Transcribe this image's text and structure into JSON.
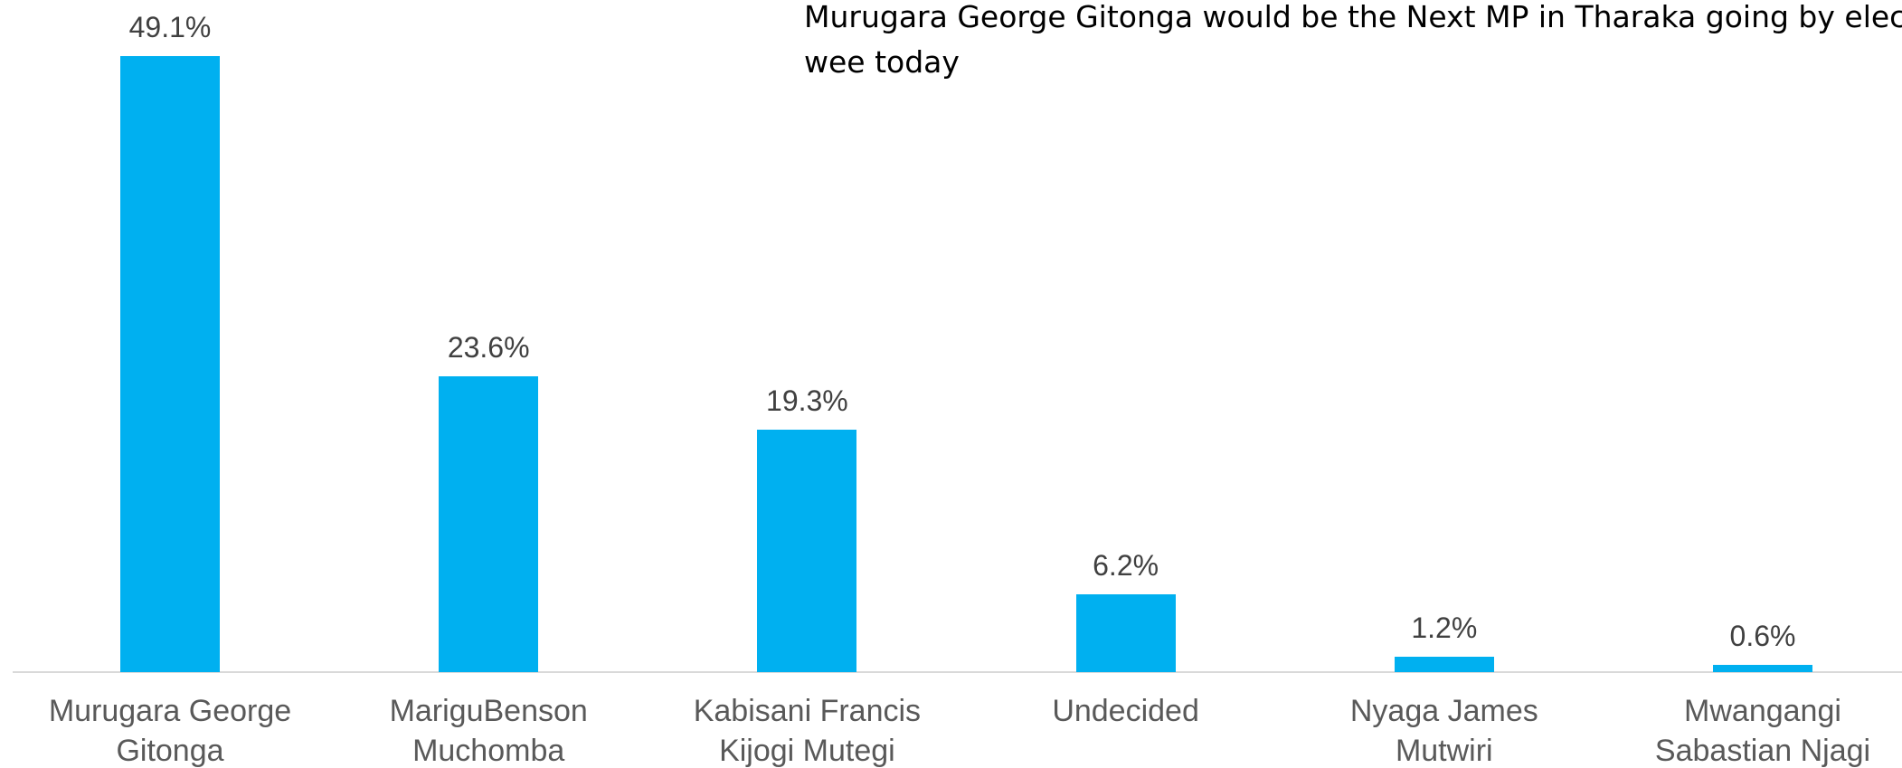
{
  "chart_data": {
    "type": "bar",
    "annotation": "Murugara George Gitonga would be the Next MP in Tharaka going by elections wee today",
    "categories": [
      "Murugara George Gitonga",
      "MariguBenson Muchomba",
      "Kabisani Francis Kijogi Mutegi",
      "Undecided",
      "Nyaga James Mutwiri",
      "Mwangangi Sabastian Njagi"
    ],
    "values": [
      49.1,
      23.6,
      19.3,
      6.2,
      1.2,
      0.6
    ],
    "value_labels": [
      "49.1%",
      "23.6%",
      "19.3%",
      "6.2%",
      "1.2%",
      "0.6%"
    ],
    "color": "#00b0f0",
    "ylim": [
      0,
      53.5
    ]
  }
}
